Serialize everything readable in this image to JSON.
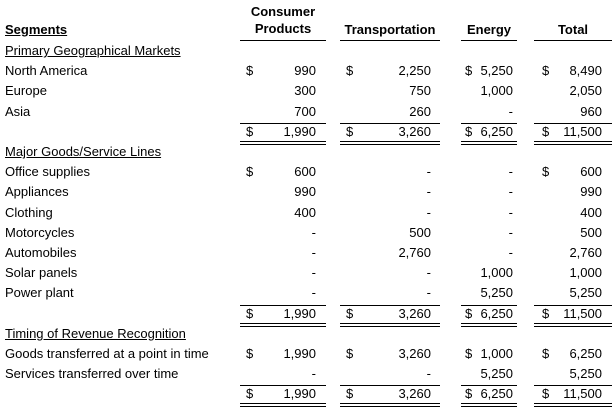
{
  "headers": {
    "segments": "Segments",
    "consumer_line1": "Consumer",
    "consumer_line2": "Products",
    "transportation": "Transportation",
    "energy": "Energy",
    "total": "Total"
  },
  "sections": [
    {
      "title": "Primary Geographical Markets",
      "rows": [
        {
          "label": "North America",
          "cp_sign": "$",
          "cp": "990",
          "tr_sign": "$",
          "tr": "2,250",
          "en_sign": "$",
          "en": "5,250",
          "to_sign": "$",
          "to": "8,490"
        },
        {
          "label": "Europe",
          "cp_sign": "",
          "cp": "300",
          "tr_sign": "",
          "tr": "750",
          "en_sign": "",
          "en": "1,000",
          "to_sign": "",
          "to": "2,050"
        },
        {
          "label": "Asia",
          "cp_sign": "",
          "cp": "700",
          "tr_sign": "",
          "tr": "260",
          "en_sign": "",
          "en": "-",
          "to_sign": "",
          "to": "960"
        }
      ],
      "total": {
        "cp_sign": "$",
        "cp": "1,990",
        "tr_sign": "$",
        "tr": "3,260",
        "en_sign": "$",
        "en": "6,250",
        "to_sign": "$",
        "to": "11,500"
      }
    },
    {
      "title": "Major Goods/Service Lines",
      "rows": [
        {
          "label": "Office supplies",
          "cp_sign": "$",
          "cp": "600",
          "tr_sign": "",
          "tr": "-",
          "en_sign": "",
          "en": "-",
          "to_sign": "$",
          "to": "600"
        },
        {
          "label": "Appliances",
          "cp_sign": "",
          "cp": "990",
          "tr_sign": "",
          "tr": "-",
          "en_sign": "",
          "en": "-",
          "to_sign": "",
          "to": "990"
        },
        {
          "label": "Clothing",
          "cp_sign": "",
          "cp": "400",
          "tr_sign": "",
          "tr": "-",
          "en_sign": "",
          "en": "-",
          "to_sign": "",
          "to": "400"
        },
        {
          "label": "Motorcycles",
          "cp_sign": "",
          "cp": "-",
          "tr_sign": "",
          "tr": "500",
          "en_sign": "",
          "en": "-",
          "to_sign": "",
          "to": "500"
        },
        {
          "label": "Automobiles",
          "cp_sign": "",
          "cp": "-",
          "tr_sign": "",
          "tr": "2,760",
          "en_sign": "",
          "en": "-",
          "to_sign": "",
          "to": "2,760"
        },
        {
          "label": "Solar panels",
          "cp_sign": "",
          "cp": "-",
          "tr_sign": "",
          "tr": "-",
          "en_sign": "",
          "en": "1,000",
          "to_sign": "",
          "to": "1,000"
        },
        {
          "label": "Power plant",
          "cp_sign": "",
          "cp": "-",
          "tr_sign": "",
          "tr": "-",
          "en_sign": "",
          "en": "5,250",
          "to_sign": "",
          "to": "5,250"
        }
      ],
      "total": {
        "cp_sign": "$",
        "cp": "1,990",
        "tr_sign": "$",
        "tr": "3,260",
        "en_sign": "$",
        "en": "6,250",
        "to_sign": "$",
        "to": "11,500"
      }
    },
    {
      "title": "Timing of Revenue Recognition",
      "rows": [
        {
          "label": "Goods transferred at a point in time",
          "cp_sign": "$",
          "cp": "1,990",
          "tr_sign": "$",
          "tr": "3,260",
          "en_sign": "$",
          "en": "1,000",
          "to_sign": "$",
          "to": "6,250"
        },
        {
          "label": "Services transferred over time",
          "cp_sign": "",
          "cp": "-",
          "tr_sign": "",
          "tr": "-",
          "en_sign": "",
          "en": "5,250",
          "to_sign": "",
          "to": "5,250"
        }
      ],
      "total": {
        "cp_sign": "$",
        "cp": "1,990",
        "tr_sign": "$",
        "tr": "3,260",
        "en_sign": "$",
        "en": "6,250",
        "to_sign": "$",
        "to": "11,500"
      }
    }
  ]
}
